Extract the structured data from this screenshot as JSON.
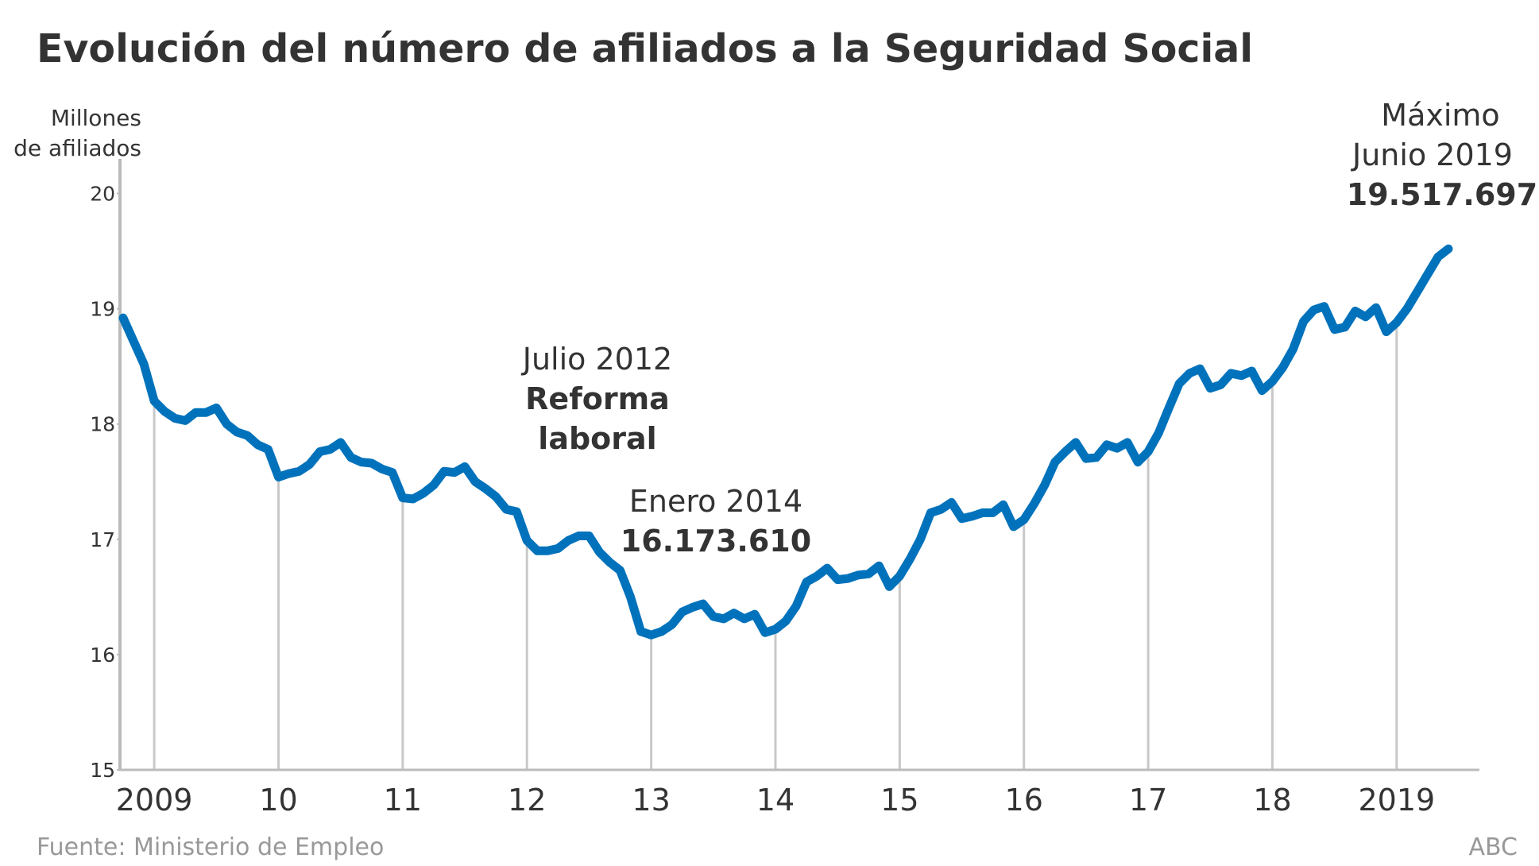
{
  "chart_data": {
    "type": "line",
    "title": "Evolución del número de afiliados a la Seguridad Social",
    "y_label": [
      "Millones",
      "de afiliados"
    ],
    "categories": [
      null,
      null,
      null,
      "2009",
      null,
      null,
      null,
      null,
      null,
      null,
      null,
      null,
      null,
      null,
      null,
      "10",
      null,
      null,
      null,
      null,
      null,
      null,
      null,
      null,
      null,
      null,
      null,
      "11",
      null,
      null,
      null,
      null,
      null,
      null,
      null,
      null,
      null,
      null,
      null,
      "12",
      null,
      null,
      null,
      null,
      null,
      null,
      null,
      null,
      null,
      null,
      null,
      "13",
      null,
      null,
      null,
      null,
      null,
      null,
      null,
      null,
      null,
      null,
      null,
      "14",
      null,
      null,
      null,
      null,
      null,
      null,
      null,
      null,
      null,
      null,
      null,
      "15",
      null,
      null,
      null,
      null,
      null,
      null,
      null,
      null,
      null,
      null,
      null,
      "16",
      null,
      null,
      null,
      null,
      null,
      null,
      null,
      null,
      null,
      null,
      null,
      "17",
      null,
      null,
      null,
      null,
      null,
      null,
      null,
      null,
      null,
      null,
      null,
      "18",
      null,
      null,
      null,
      null,
      null,
      null,
      null,
      null,
      null,
      null,
      null,
      "2019",
      null,
      null,
      null,
      null,
      null
    ],
    "values": [
      18.92,
      18.72,
      18.52,
      18.2,
      18.11,
      18.05,
      18.03,
      18.1,
      18.1,
      18.14,
      18.0,
      17.93,
      17.9,
      17.82,
      17.78,
      17.54,
      17.57,
      17.59,
      17.65,
      17.76,
      17.78,
      17.84,
      17.71,
      17.67,
      17.66,
      17.61,
      17.58,
      17.36,
      17.35,
      17.4,
      17.47,
      17.59,
      17.58,
      17.63,
      17.5,
      17.44,
      17.37,
      17.26,
      17.24,
      16.99,
      16.9,
      16.9,
      16.92,
      16.99,
      17.03,
      17.03,
      16.89,
      16.8,
      16.73,
      16.5,
      16.2,
      16.17,
      16.2,
      16.26,
      16.37,
      16.41,
      16.44,
      16.33,
      16.31,
      16.36,
      16.31,
      16.35,
      16.19,
      16.22,
      16.29,
      16.42,
      16.63,
      16.68,
      16.75,
      16.65,
      16.66,
      16.69,
      16.7,
      16.77,
      16.59,
      16.68,
      16.83,
      17.0,
      17.23,
      17.26,
      17.32,
      17.18,
      17.2,
      17.23,
      17.23,
      17.3,
      17.11,
      17.17,
      17.31,
      17.47,
      17.67,
      17.76,
      17.84,
      17.7,
      17.71,
      17.82,
      17.79,
      17.84,
      17.67,
      17.76,
      17.92,
      18.14,
      18.35,
      18.44,
      18.48,
      18.31,
      18.34,
      18.44,
      18.42,
      18.46,
      18.29,
      18.37,
      18.49,
      18.65,
      18.89,
      18.99,
      19.02,
      18.82,
      18.84,
      18.98,
      18.93,
      19.01,
      18.8,
      18.88,
      19.0,
      19.15,
      19.3,
      19.45,
      19.52
    ],
    "color": "#0072bb",
    "ylim": [
      15,
      20.3
    ],
    "yticks": [
      15,
      16,
      17,
      18,
      19,
      20
    ],
    "annotations": {
      "reform": [
        "Julio 2012",
        "Reforma",
        "laboral"
      ],
      "minimum": [
        "Enero 2014",
        "16.173.610"
      ],
      "maximum": [
        "Máximo",
        "Junio 2019",
        "19.517.697"
      ]
    },
    "source": "Fuente: Ministerio de Empleo",
    "credit": "ABC"
  }
}
